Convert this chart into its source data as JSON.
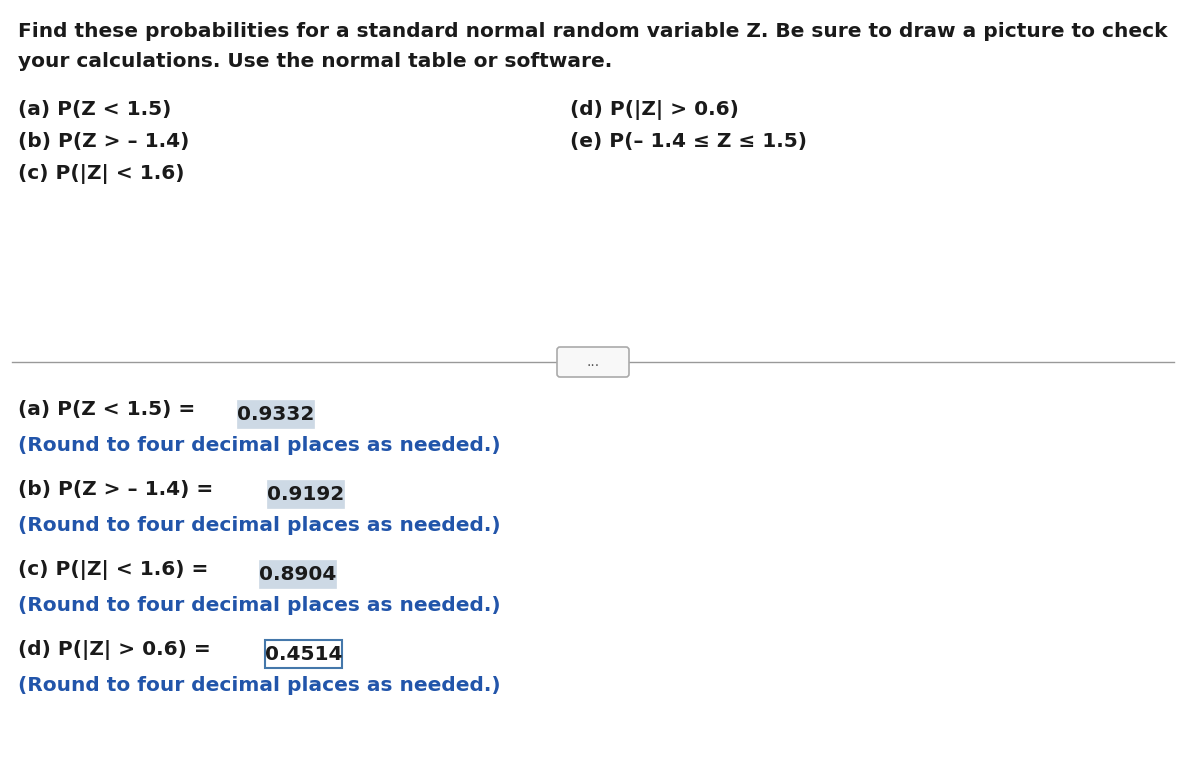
{
  "background_color": "#ffffff",
  "header_text_line1": "Find these probabilities for a standard normal random variable Z. Be sure to draw a picture to check",
  "header_text_line2": "your calculations. Use the normal table or software.",
  "questions_col1": [
    "(a) P(Z < 1.5)",
    "(b) P(Z > – 1.4)",
    "(c) P(|Z| < 1.6)"
  ],
  "questions_col2": [
    "(d) P(|Z| > 0.6)",
    "(e) P(– 1.4 ≤ Z ≤ 1.5)"
  ],
  "ellipsis_text": "...",
  "answers": [
    {
      "label": "(a) P(Z < 1.5) = ",
      "value": "0.9332",
      "note": "(Round to four decimal places as needed.)",
      "box_style": "filled"
    },
    {
      "label": "(b) P(Z > – 1.4) = ",
      "value": "0.9192",
      "note": "(Round to four decimal places as needed.)",
      "box_style": "filled"
    },
    {
      "label": "(c) P(|Z| < 1.6) = ",
      "value": "0.8904",
      "note": "(Round to four decimal places as needed.)",
      "box_style": "filled"
    },
    {
      "label": "(d) P(|Z| > 0.6) = ",
      "value": "0.4514",
      "note": "(Round to four decimal places as needed.)",
      "box_style": "outline"
    }
  ],
  "text_color_black": "#1a1a1a",
  "text_color_blue": "#2255aa",
  "box_fill_color": "#cdd9e5",
  "box_fill_edge": "#cdd9e5",
  "box_outline_color": "#4477aa",
  "header_fontsize": 14.5,
  "question_fontsize": 14.5,
  "answer_label_fontsize": 14.5,
  "note_fontsize": 14.5,
  "divider_color": "#999999"
}
